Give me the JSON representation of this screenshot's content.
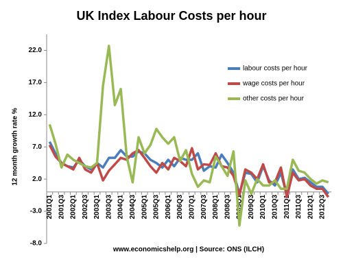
{
  "chart_data": {
    "type": "line",
    "title": "UK Index Labour Costs per hour",
    "y_label": "12 month growth rate %",
    "annotation": "www.economicshelp.org | Source: ONS (ILCH)",
    "categories": [
      "2001Q1",
      null,
      "2001Q3",
      null,
      "2002Q1",
      null,
      "2002Q3",
      null,
      "2003Q1",
      null,
      "2003Q3",
      null,
      "2004Q1",
      null,
      "2004Q3",
      null,
      "2005Q1",
      null,
      "2005Q3",
      null,
      "2006Q1",
      null,
      "2006Q3",
      null,
      "2007Q1",
      null,
      "2007Q3",
      null,
      "2008Q1",
      null,
      "2008Q3",
      null,
      "2009Q1",
      null,
      "2009Q3",
      null,
      "2010Q1",
      null,
      "2010Q3",
      null,
      "2011Q1",
      null,
      "2011Q3",
      null,
      "2012Q1",
      null,
      "2012Q3",
      null
    ],
    "series": [
      {
        "name": "labour costs per hour",
        "color": "#4a7ebb",
        "values": [
          7.8,
          6.0,
          4.5,
          4.0,
          3.8,
          5.0,
          4.0,
          3.5,
          4.5,
          3.8,
          5.3,
          5.3,
          6.5,
          5.5,
          5.5,
          6.3,
          6.0,
          5.0,
          4.5,
          3.8,
          5.0,
          4.0,
          5.3,
          5.0,
          5.0,
          6.0,
          3.3,
          4.0,
          3.8,
          5.8,
          4.5,
          3.0,
          -0.3,
          3.0,
          2.8,
          1.5,
          4.0,
          1.8,
          1.0,
          3.0,
          -0.5,
          3.5,
          2.0,
          2.2,
          1.5,
          0.8,
          0.8,
          -0.3
        ]
      },
      {
        "name": "wage costs per hour",
        "color": "#be4b48",
        "values": [
          7.3,
          5.5,
          4.5,
          4.0,
          3.5,
          5.3,
          3.5,
          3.0,
          4.5,
          1.8,
          3.3,
          4.3,
          5.3,
          5.0,
          6.0,
          6.5,
          5.3,
          4.0,
          3.0,
          4.5,
          3.5,
          5.3,
          4.8,
          4.0,
          6.8,
          3.5,
          4.3,
          4.2,
          6.0,
          4.0,
          3.8,
          2.5,
          -0.5,
          3.5,
          3.0,
          2.0,
          4.3,
          1.5,
          1.5,
          3.8,
          -0.8,
          3.0,
          1.8,
          2.0,
          1.0,
          0.5,
          0.5,
          -0.8
        ]
      },
      {
        "name": "other costs per hour",
        "color": "#98b954",
        "values": [
          10.5,
          7.5,
          3.8,
          5.8,
          5.0,
          4.5,
          4.0,
          3.8,
          4.5,
          16.5,
          22.7,
          13.5,
          16.0,
          5.5,
          1.5,
          8.5,
          6.0,
          7.3,
          9.8,
          8.5,
          7.5,
          8.5,
          4.8,
          6.5,
          2.8,
          0.8,
          1.8,
          1.5,
          5.5,
          4.0,
          2.5,
          6.3,
          -5.2,
          1.8,
          -0.3,
          2.0,
          1.0,
          1.0,
          1.8,
          0.5,
          0.5,
          5.0,
          3.3,
          3.0,
          2.0,
          1.3,
          1.8,
          1.5
        ]
      }
    ],
    "ylim": [
      -8,
      24.5
    ],
    "yticks": [
      {
        "value": -8,
        "label": "-8.0"
      },
      {
        "value": -3,
        "label": "-3.0"
      },
      {
        "value": 2,
        "label": "2.0"
      },
      {
        "value": 7,
        "label": "7.0"
      },
      {
        "value": 12,
        "label": "12.0"
      },
      {
        "value": 17,
        "label": "17.0"
      },
      {
        "value": 22,
        "label": "22.0"
      }
    ],
    "legend": "upper right"
  }
}
